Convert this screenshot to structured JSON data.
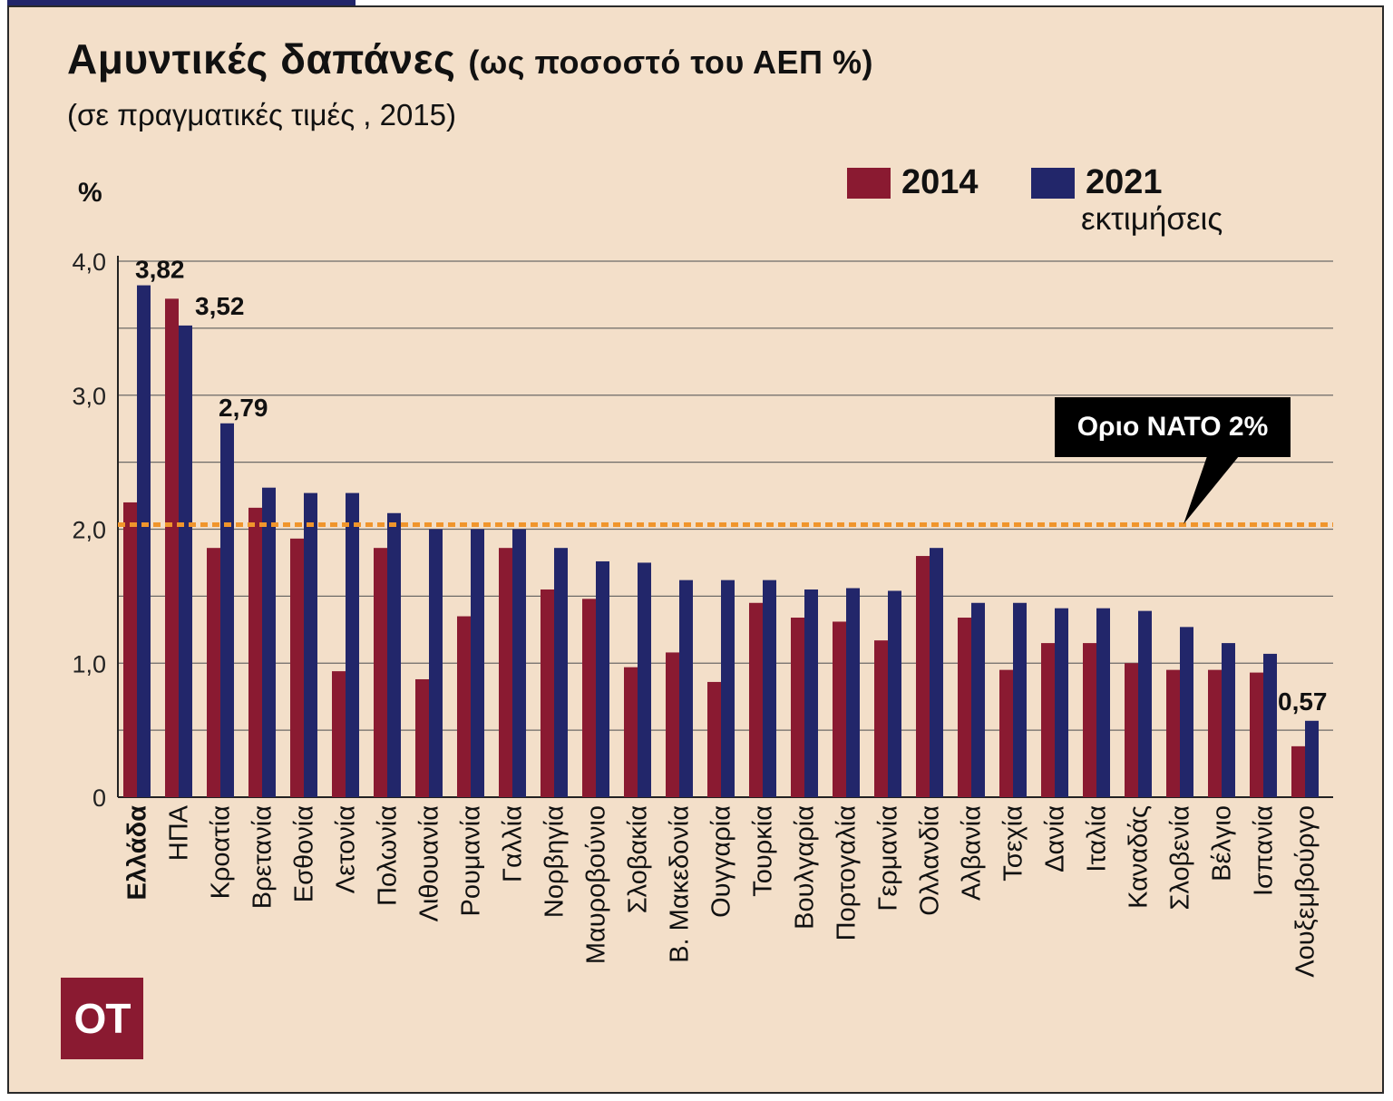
{
  "title": "Αμυντικές δαπάνες",
  "title_extra": "(ως ποσοστό του ΑΕΠ %)",
  "subtitle": "(σε πραγματικές τιμές , 2015)",
  "logo": "ΟΤ",
  "legend": {
    "series1": "2014",
    "series2": "2021",
    "series2_note": "εκτιμήσεις"
  },
  "nato_label": "Οριο ΝΑΤΟ 2%",
  "colors": {
    "background": "#f3dfc9",
    "series_2014": "#8a1a31",
    "series_2021": "#22266a",
    "nato_line": "#f0952c"
  },
  "chart_data": {
    "type": "bar",
    "ylabel": "%",
    "ylim": [
      0,
      4.0
    ],
    "yticks": [
      {
        "value": 0,
        "label": "0"
      },
      {
        "value": 1.0,
        "label": "1,0"
      },
      {
        "value": 2.0,
        "label": "2,0"
      },
      {
        "value": 3.0,
        "label": "3,0"
      },
      {
        "value": 4.0,
        "label": "4,0"
      }
    ],
    "grid": true,
    "legend_position": "top-right",
    "reference_line": {
      "value": 2.0,
      "label": "Οριο ΝΑΤΟ 2%"
    },
    "bold_category": "Ελλάδα",
    "categories": [
      "Ελλάδα",
      "ΗΠΑ",
      "Κροατία",
      "Βρετανία",
      "Εσθονία",
      "Λετονία",
      "Πολωνία",
      "Λιθουανία",
      "Ρουμανία",
      "Γαλλία",
      "Νορβηγία",
      "Μαυροβούνιο",
      "Σλοβακία",
      "Β. Μακεδονία",
      "Ουγγαρία",
      "Τουρκία",
      "Βουλγαρία",
      "Πορτογαλία",
      "Γερμανία",
      "Ολλανδία",
      "Αλβανία",
      "Τσεχία",
      "Δανία",
      "Ιταλία",
      "Καναδάς",
      "Σλοβενία",
      "Βέλγιο",
      "Ισπανία",
      "Λουξεμβούργο"
    ],
    "series": [
      {
        "name": "2014",
        "values": [
          2.2,
          3.72,
          1.86,
          2.16,
          1.93,
          0.94,
          1.86,
          0.88,
          1.35,
          1.86,
          1.55,
          1.48,
          0.97,
          1.08,
          0.86,
          1.45,
          1.34,
          1.31,
          1.17,
          1.8,
          1.34,
          0.95,
          1.15,
          1.15,
          1.0,
          0.95,
          0.95,
          0.93,
          0.38
        ]
      },
      {
        "name": "2021",
        "values": [
          3.82,
          3.52,
          2.79,
          2.31,
          2.27,
          2.27,
          2.12,
          2.0,
          2.0,
          2.0,
          1.86,
          1.76,
          1.75,
          1.62,
          1.62,
          1.62,
          1.55,
          1.56,
          1.54,
          1.86,
          1.45,
          1.45,
          1.41,
          1.41,
          1.39,
          1.27,
          1.15,
          1.07,
          0.57
        ]
      }
    ],
    "data_labels": [
      {
        "category": "Ελλάδα",
        "series": "2021",
        "text": "3,82"
      },
      {
        "category": "ΗΠΑ",
        "series": "2021",
        "text": "3,52"
      },
      {
        "category": "Κροατία",
        "series": "2021",
        "text": "2,79"
      },
      {
        "category": "Λουξεμβούργο",
        "series": "2021",
        "text": "0,57"
      }
    ]
  }
}
